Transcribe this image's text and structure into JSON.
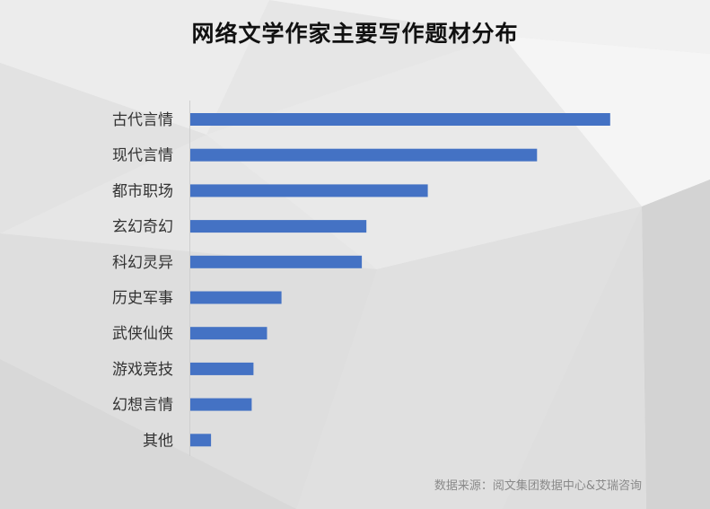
{
  "title": "网络文学作家主要写作题材分布",
  "source": "数据来源：阅文集团数据中心&艾瑞咨询",
  "colors": {
    "bar": "#4472c4",
    "label": "#333333",
    "background": "#e7e7e7"
  },
  "chart_data": {
    "type": "bar",
    "orientation": "horizontal",
    "categories": [
      "古代言情",
      "现代言情",
      "都市职场",
      "玄幻奇幻",
      "科幻灵异",
      "历史军事",
      "武侠仙侠",
      "游戏竞技",
      "幻想言情",
      "其他"
    ],
    "values": [
      46.5,
      38.4,
      26.3,
      19.5,
      19.0,
      10.1,
      8.5,
      7.0,
      6.8,
      2.3
    ],
    "xlim": [
      0,
      50
    ],
    "grid": false,
    "legend": "none"
  }
}
